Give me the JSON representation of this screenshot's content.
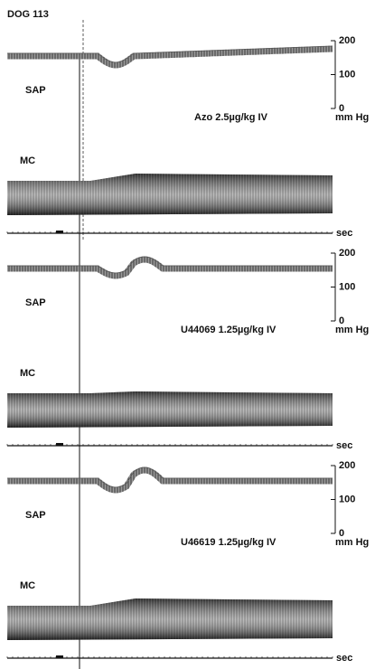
{
  "header": {
    "title": "DOG 113"
  },
  "panels": [
    {
      "sap_label": "SAP",
      "scale": [
        "200",
        "100",
        "0"
      ],
      "unit": "mm Hg",
      "drug": "Azo 2.5µg/kg IV",
      "mc_label": "MC",
      "time_label": "sec"
    },
    {
      "sap_label": "SAP",
      "scale": [
        "200",
        "100",
        "0"
      ],
      "unit": "mm Hg",
      "drug": "U44069   1.25µg/kg  IV",
      "mc_label": "MC",
      "time_label": "sec"
    },
    {
      "sap_label": "SAP",
      "scale": [
        "200",
        "100",
        "0"
      ],
      "unit": "mm Hg",
      "drug": "U46619  1.25µg/kg  IV",
      "mc_label": "MC",
      "time_label": "sec"
    }
  ]
}
